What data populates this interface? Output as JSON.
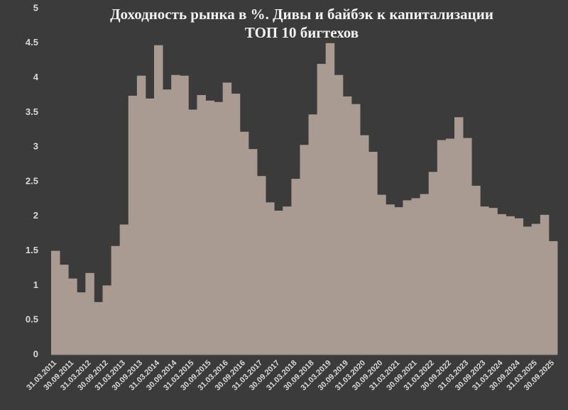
{
  "chart_data": {
    "type": "bar",
    "title": "Доходность рынка в %. Дивы и байбэк к капитализации",
    "subtitle": "ТОП 10 бигтехов",
    "categories": [
      "31.03.2011",
      null,
      "30.09.2011",
      null,
      "31.03.2012",
      null,
      "30.09.2012",
      null,
      "31.03.2013",
      null,
      "30.09.2013",
      null,
      "31.03.2014",
      null,
      "30.09.2014",
      null,
      "31.03.2015",
      null,
      "30.09.2015",
      null,
      "31.03.2016",
      null,
      "30.09.2016",
      null,
      "31.03.2017",
      null,
      "30.09.2017",
      null,
      "31.03.2018",
      null,
      "30.09.2018",
      null,
      "31.03.2019",
      null,
      "30.09.2019",
      null,
      "31.03.2020",
      null,
      "30.09.2020",
      null,
      "31.03.2021",
      null,
      "30.09.2021",
      null,
      "31.03.2022",
      null,
      "30.09.2022",
      null,
      "31.03.2023",
      null,
      "30.09.2023",
      null,
      "31.03.2024",
      null,
      "30.09.2024",
      null,
      "31.03.2025",
      null,
      "30.09.2025"
    ],
    "values": [
      1.5,
      1.3,
      1.1,
      0.9,
      1.18,
      0.76,
      1.0,
      1.57,
      1.88,
      3.74,
      4.03,
      3.7,
      4.47,
      3.83,
      4.04,
      4.03,
      3.54,
      3.75,
      3.67,
      3.65,
      3.93,
      3.77,
      3.22,
      2.97,
      2.58,
      2.2,
      2.08,
      2.14,
      2.54,
      3.03,
      3.47,
      4.2,
      4.5,
      4.04,
      3.73,
      3.62,
      3.17,
      2.93,
      2.31,
      2.17,
      2.13,
      2.23,
      2.26,
      2.32,
      2.64,
      3.1,
      3.12,
      3.43,
      3.13,
      2.44,
      2.14,
      2.12,
      2.03,
      2.0,
      1.97,
      1.85,
      1.89,
      2.02,
      1.64
    ],
    "color": "#a99b91",
    "ylim": [
      0,
      5
    ],
    "yticks": [
      0,
      0.5,
      1,
      1.5,
      2,
      2.5,
      3,
      3.5,
      4,
      4.5,
      5
    ],
    "grid": false
  }
}
